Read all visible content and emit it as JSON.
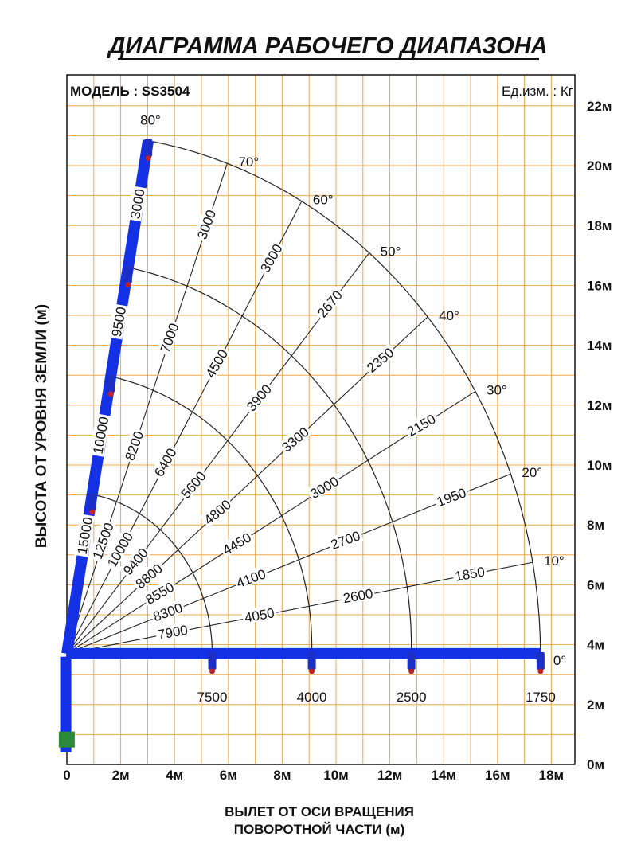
{
  "title": "ДИАГРАММА РАБОЧЕГО ДИАПАЗОНА",
  "model_label": "МОДЕЛЬ : SS3504",
  "unit_label": "Ед.изм. : Кг",
  "colors": {
    "grid": "#f0a84a",
    "boom": "#1431e6",
    "hook": "#c0202a",
    "text": "#111111"
  },
  "chart_data": {
    "type": "line",
    "xlabel_line1": "ВЫЛЕТ ОТ ОСИ ВРАЩЕНИЯ",
    "xlabel_line2": "ПОВОРОТНОЙ ЧАСТИ (м)",
    "ylabel": "ВЫСОТА ОТ УРОВНЯ ЗЕМЛИ (м)",
    "xlim": [
      0,
      18.6
    ],
    "ylim": [
      0,
      22.6
    ],
    "grid": true,
    "x_ticks": [
      {
        "value": 0,
        "label": "0"
      },
      {
        "value": 2,
        "label": "2м"
      },
      {
        "value": 4,
        "label": "4м"
      },
      {
        "value": 6,
        "label": "6м"
      },
      {
        "value": 8,
        "label": "8м"
      },
      {
        "value": 10,
        "label": "10м"
      },
      {
        "value": 12,
        "label": "12м"
      },
      {
        "value": 14,
        "label": "14м"
      },
      {
        "value": 16,
        "label": "16м"
      },
      {
        "value": 18,
        "label": "18м"
      }
    ],
    "y_ticks": [
      {
        "value": 0,
        "label": "0м"
      },
      {
        "value": 2,
        "label": "2м"
      },
      {
        "value": 4,
        "label": "4м"
      },
      {
        "value": 6,
        "label": "6м"
      },
      {
        "value": 8,
        "label": "8м"
      },
      {
        "value": 10,
        "label": "10м"
      },
      {
        "value": 12,
        "label": "12м"
      },
      {
        "value": 14,
        "label": "14м"
      },
      {
        "value": 16,
        "label": "16м"
      },
      {
        "value": 18,
        "label": "18м"
      },
      {
        "value": 20,
        "label": "20м"
      },
      {
        "value": 22,
        "label": "22м"
      }
    ],
    "pivot": {
      "x": 0,
      "y": 3.7
    },
    "boom_lengths_m": [
      5.4,
      9.1,
      12.8,
      17.6
    ],
    "boom_lengths_vertical_m": [
      5.4,
      9.4,
      13.1,
      17.4
    ],
    "angles": [
      {
        "deg": 0,
        "label": "0°"
      },
      {
        "deg": 10,
        "label": "10°"
      },
      {
        "deg": 20,
        "label": "20°"
      },
      {
        "deg": 30,
        "label": "30°"
      },
      {
        "deg": 40,
        "label": "40°"
      },
      {
        "deg": 50,
        "label": "50°"
      },
      {
        "deg": 60,
        "label": "60°"
      },
      {
        "deg": 70,
        "label": "70°"
      },
      {
        "deg": 80,
        "label": "80°"
      }
    ],
    "loads": [
      {
        "angle": 0,
        "section": 1,
        "value": "7500"
      },
      {
        "angle": 0,
        "section": 2,
        "value": "4000"
      },
      {
        "angle": 0,
        "section": 3,
        "value": "2500"
      },
      {
        "angle": 0,
        "section": 4,
        "value": "1750"
      },
      {
        "angle": 10,
        "section": 1,
        "value": "7900"
      },
      {
        "angle": 10,
        "section": 2,
        "value": "4050"
      },
      {
        "angle": 10,
        "section": 3,
        "value": "2600"
      },
      {
        "angle": 10,
        "section": 4,
        "value": "1850"
      },
      {
        "angle": 20,
        "section": 1,
        "value": "8300"
      },
      {
        "angle": 20,
        "section": 2,
        "value": "4100"
      },
      {
        "angle": 20,
        "section": 3,
        "value": "2700"
      },
      {
        "angle": 20,
        "section": 4,
        "value": "1950"
      },
      {
        "angle": 30,
        "section": 1,
        "value": "8550"
      },
      {
        "angle": 30,
        "section": 2,
        "value": "4450"
      },
      {
        "angle": 30,
        "section": 3,
        "value": "3000"
      },
      {
        "angle": 30,
        "section": 4,
        "value": "2150"
      },
      {
        "angle": 40,
        "section": 1,
        "value": "8800"
      },
      {
        "angle": 40,
        "section": 2,
        "value": "4800"
      },
      {
        "angle": 40,
        "section": 3,
        "value": "3300"
      },
      {
        "angle": 40,
        "section": 4,
        "value": "2350"
      },
      {
        "angle": 50,
        "section": 1,
        "value": "9400"
      },
      {
        "angle": 50,
        "section": 2,
        "value": "5600"
      },
      {
        "angle": 50,
        "section": 3,
        "value": "3900"
      },
      {
        "angle": 50,
        "section": 4,
        "value": "2670"
      },
      {
        "angle": 60,
        "section": 1,
        "value": "10000"
      },
      {
        "angle": 60,
        "section": 2,
        "value": "6400"
      },
      {
        "angle": 60,
        "section": 3,
        "value": "4500"
      },
      {
        "angle": 60,
        "section": 4,
        "value": "3000"
      },
      {
        "angle": 70,
        "section": 1,
        "value": "12500"
      },
      {
        "angle": 70,
        "section": 2,
        "value": "8200"
      },
      {
        "angle": 70,
        "section": 3,
        "value": "7000"
      },
      {
        "angle": 70,
        "section": 4,
        "value": "3000"
      },
      {
        "angle": 80,
        "section": 1,
        "value": "15000"
      },
      {
        "angle": 80,
        "section": 2,
        "value": "10000"
      },
      {
        "angle": 80,
        "section": 3,
        "value": "9500"
      },
      {
        "angle": 80,
        "section": 4,
        "value": "3000"
      }
    ]
  }
}
